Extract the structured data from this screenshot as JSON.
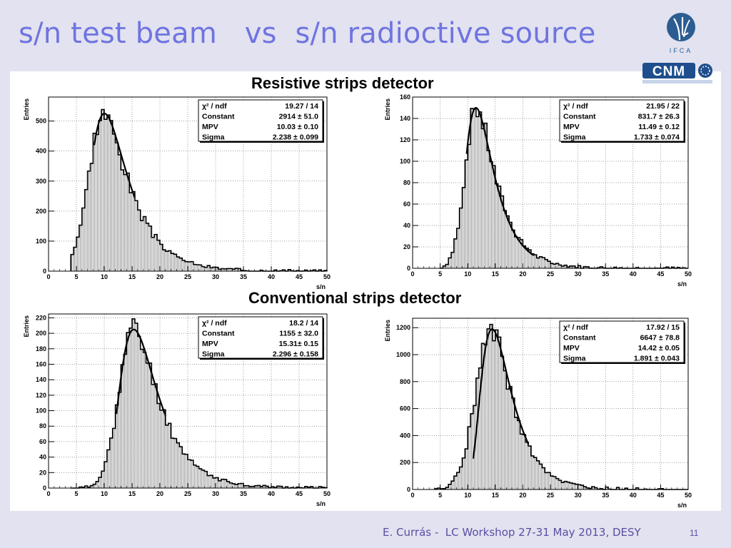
{
  "slide": {
    "title": "s/n test beam   vs  s/n radioctive source",
    "section_top": "Resistive strips detector",
    "section_bottom": "Conventional strips detector",
    "footer": "E. Currás -  LC Workshop 27-31 May 2013, DESY",
    "page_number": "11",
    "logos": [
      "IFCA logo",
      "CNM logo"
    ]
  },
  "colors": {
    "title": "#6f74e0",
    "footer": "#5b4ea3",
    "fill": "#d0d0d0",
    "fit": "#000000"
  },
  "chart_data": [
    {
      "type": "bar",
      "panel": "top-left",
      "xlabel": "s/n",
      "ylabel": "Entries",
      "xlim": [
        0,
        50
      ],
      "ylim": [
        0,
        580
      ],
      "xticks": [
        0,
        5,
        10,
        15,
        20,
        25,
        30,
        35,
        40,
        45,
        50
      ],
      "yticks": [
        0,
        100,
        200,
        300,
        400,
        500
      ],
      "grid": true,
      "histogram": {
        "start": 4.0,
        "end": 50,
        "mpv": 9.8,
        "sigma": 2.3,
        "peak": 525,
        "left_width": 2.6,
        "seed": 3
      },
      "fit": {
        "mpv": 10.03,
        "sigma": 2.238,
        "constant": 2914,
        "from": 8.2,
        "to": 15.5
      },
      "stats": [
        {
          "label": "χ² / ndf",
          "value": "19.27 / 14"
        },
        {
          "label": "Constant",
          "value": "2914 ± 51.0"
        },
        {
          "label": "MPV",
          "value": "10.03 ± 0.10"
        },
        {
          "label": "Sigma",
          "value": "2.238 ± 0.099"
        }
      ],
      "legend_position": "top-right"
    },
    {
      "type": "bar",
      "panel": "top-right",
      "xlabel": "s/n",
      "ylabel": "Entries",
      "xlim": [
        0,
        50
      ],
      "ylim": [
        0,
        160
      ],
      "xticks": [
        0,
        5,
        10,
        15,
        20,
        25,
        30,
        35,
        40,
        45,
        50
      ],
      "yticks": [
        0,
        20,
        40,
        60,
        80,
        100,
        120,
        140,
        160
      ],
      "grid": true,
      "histogram": {
        "start": 5.0,
        "end": 50,
        "mpv": 11.5,
        "sigma": 1.8,
        "peak": 150,
        "left_width": 2.0,
        "seed": 7
      },
      "fit": {
        "mpv": 11.49,
        "sigma": 1.733,
        "constant": 831.7,
        "from": 9.8,
        "to": 22
      },
      "stats": [
        {
          "label": "χ² / ndf",
          "value": "21.95 / 22"
        },
        {
          "label": "Constant",
          "value": "831.7 ± 26.3"
        },
        {
          "label": "MPV",
          "value": "11.49 ± 0.12"
        },
        {
          "label": "Sigma",
          "value": "1.733 ± 0.074"
        }
      ],
      "legend_position": "top-right"
    },
    {
      "type": "bar",
      "panel": "bottom-left",
      "xlabel": "s/n",
      "ylabel": "Entries",
      "xlim": [
        0,
        50
      ],
      "ylim": [
        0,
        225
      ],
      "xticks": [
        0,
        5,
        10,
        15,
        20,
        25,
        30,
        35,
        40,
        45,
        50
      ],
      "yticks": [
        0,
        20,
        40,
        60,
        80,
        100,
        120,
        140,
        160,
        180,
        200,
        220
      ],
      "grid": true,
      "histogram": {
        "start": 4.0,
        "end": 50,
        "mpv": 15.2,
        "sigma": 2.3,
        "peak": 205,
        "left_width": 2.6,
        "seed": 11
      },
      "fit": {
        "mpv": 15.31,
        "sigma": 2.296,
        "constant": 1155,
        "from": 12.2,
        "to": 21
      },
      "stats": [
        {
          "label": "χ² / ndf",
          "value": "18.2 / 14"
        },
        {
          "label": "Constant",
          "value": "1155 ± 32.0"
        },
        {
          "label": "MPV",
          "value": "15.31± 0.15"
        },
        {
          "label": "Sigma",
          "value": "2.296 ± 0.158"
        }
      ],
      "legend_position": "top-right"
    },
    {
      "type": "bar",
      "panel": "bottom-right",
      "xlabel": "s/n",
      "ylabel": "Entries",
      "xlim": [
        0,
        50
      ],
      "ylim": [
        0,
        1270
      ],
      "xticks": [
        0,
        5,
        10,
        15,
        20,
        25,
        30,
        35,
        40,
        45,
        50
      ],
      "yticks": [
        0,
        200,
        400,
        600,
        800,
        1000,
        1200
      ],
      "grid": true,
      "histogram": {
        "start": 4.0,
        "end": 50,
        "mpv": 14.2,
        "sigma": 1.9,
        "peak": 1190,
        "left_width": 2.8,
        "seed": 19
      },
      "fit": {
        "mpv": 14.42,
        "sigma": 1.891,
        "constant": 6647,
        "from": 11.0,
        "to": 21
      },
      "stats": [
        {
          "label": "χ² / ndf",
          "value": "17.92 / 15"
        },
        {
          "label": "Constant",
          "value": "6647 ± 78.8"
        },
        {
          "label": "MPV",
          "value": "14.42 ± 0.05"
        },
        {
          "label": "Sigma",
          "value": "1.891 ± 0.043"
        }
      ],
      "legend_position": "top-right"
    }
  ]
}
